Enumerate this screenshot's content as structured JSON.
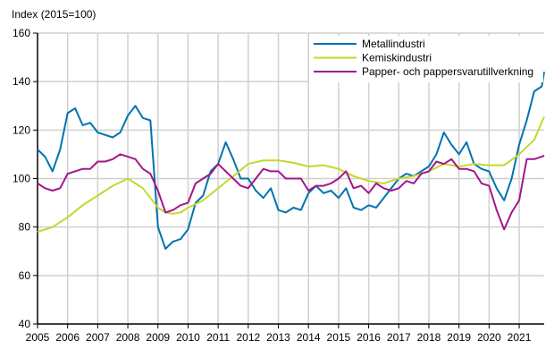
{
  "chart_data": {
    "type": "line",
    "ylabel": "Index (2015=100)",
    "ylim": [
      40,
      160
    ],
    "xlim": [
      2005,
      2021.83
    ],
    "yticks": [
      40,
      60,
      80,
      100,
      120,
      140,
      160
    ],
    "xticks": [
      "2005",
      "2006",
      "2007",
      "2008",
      "2009",
      "2010",
      "2011",
      "2012",
      "2013",
      "2014",
      "2015",
      "2016",
      "2017",
      "2018",
      "2019",
      "2020",
      "2021"
    ],
    "grid": true,
    "legend_placement": "top-right",
    "series": [
      {
        "name": "Metallindustri",
        "color": "#0073b0",
        "points": [
          [
            2005,
            112
          ],
          [
            2005.25,
            109
          ],
          [
            2005.5,
            103
          ],
          [
            2005.75,
            112
          ],
          [
            2006,
            127
          ],
          [
            2006.25,
            129
          ],
          [
            2006.5,
            122
          ],
          [
            2006.75,
            123
          ],
          [
            2007,
            119
          ],
          [
            2007.25,
            118
          ],
          [
            2007.5,
            117
          ],
          [
            2007.75,
            119
          ],
          [
            2008,
            126
          ],
          [
            2008.25,
            130
          ],
          [
            2008.5,
            125
          ],
          [
            2008.75,
            124
          ],
          [
            2009,
            80
          ],
          [
            2009.25,
            71
          ],
          [
            2009.5,
            74
          ],
          [
            2009.75,
            75
          ],
          [
            2010,
            79
          ],
          [
            2010.25,
            90
          ],
          [
            2010.5,
            93
          ],
          [
            2010.75,
            103
          ],
          [
            2011,
            106
          ],
          [
            2011.25,
            115
          ],
          [
            2011.5,
            108
          ],
          [
            2011.75,
            100
          ],
          [
            2012,
            100
          ],
          [
            2012.25,
            95
          ],
          [
            2012.5,
            92
          ],
          [
            2012.75,
            96
          ],
          [
            2013,
            87
          ],
          [
            2013.25,
            86
          ],
          [
            2013.5,
            88
          ],
          [
            2013.75,
            87
          ],
          [
            2014,
            94
          ],
          [
            2014.25,
            97
          ],
          [
            2014.5,
            94
          ],
          [
            2014.75,
            95
          ],
          [
            2015,
            92
          ],
          [
            2015.25,
            96
          ],
          [
            2015.5,
            88
          ],
          [
            2015.75,
            87
          ],
          [
            2016,
            89
          ],
          [
            2016.25,
            88
          ],
          [
            2016.5,
            92
          ],
          [
            2016.75,
            96
          ],
          [
            2017,
            100
          ],
          [
            2017.25,
            102
          ],
          [
            2017.5,
            101
          ],
          [
            2017.75,
            103
          ],
          [
            2018,
            105
          ],
          [
            2018.25,
            110
          ],
          [
            2018.5,
            119
          ],
          [
            2018.75,
            114
          ],
          [
            2019,
            110
          ],
          [
            2019.25,
            115
          ],
          [
            2019.5,
            106
          ],
          [
            2019.75,
            104
          ],
          [
            2020,
            103
          ],
          [
            2020.25,
            96
          ],
          [
            2020.5,
            91
          ],
          [
            2020.75,
            100
          ],
          [
            2021,
            114
          ],
          [
            2021.25,
            124
          ],
          [
            2021.5,
            136
          ],
          [
            2021.75,
            138
          ],
          [
            2021.83,
            144
          ]
        ]
      },
      {
        "name": "Kemiskindustri",
        "color": "#c4d82e",
        "points": [
          [
            2005,
            78
          ],
          [
            2005.5,
            80
          ],
          [
            2006,
            84
          ],
          [
            2006.5,
            89
          ],
          [
            2007,
            93
          ],
          [
            2007.5,
            97
          ],
          [
            2008,
            100
          ],
          [
            2008.25,
            98
          ],
          [
            2008.5,
            96
          ],
          [
            2008.75,
            92
          ],
          [
            2009,
            88
          ],
          [
            2009.25,
            86
          ],
          [
            2009.5,
            85.5
          ],
          [
            2009.75,
            86
          ],
          [
            2010,
            88
          ],
          [
            2010.5,
            91
          ],
          [
            2011,
            96
          ],
          [
            2011.5,
            101
          ],
          [
            2012,
            106
          ],
          [
            2012.5,
            107.5
          ],
          [
            2013,
            107.5
          ],
          [
            2013.5,
            106.5
          ],
          [
            2014,
            105
          ],
          [
            2014.5,
            105.5
          ],
          [
            2015,
            104
          ],
          [
            2015.5,
            101
          ],
          [
            2016,
            99
          ],
          [
            2016.5,
            98
          ],
          [
            2017,
            100
          ],
          [
            2017.5,
            101
          ],
          [
            2018,
            103
          ],
          [
            2018.5,
            106
          ],
          [
            2019,
            105
          ],
          [
            2019.5,
            106
          ],
          [
            2020,
            105.5
          ],
          [
            2020.5,
            105.5
          ],
          [
            2021,
            110
          ],
          [
            2021.5,
            116
          ],
          [
            2021.83,
            125.5
          ]
        ]
      },
      {
        "name": "Papper- och pappersvarutillverkning",
        "color": "#a3168b",
        "points": [
          [
            2005,
            98
          ],
          [
            2005.25,
            96
          ],
          [
            2005.5,
            95
          ],
          [
            2005.75,
            96
          ],
          [
            2006,
            102
          ],
          [
            2006.25,
            103
          ],
          [
            2006.5,
            104
          ],
          [
            2006.75,
            104
          ],
          [
            2007,
            107
          ],
          [
            2007.25,
            107
          ],
          [
            2007.5,
            108
          ],
          [
            2007.75,
            110
          ],
          [
            2008,
            109
          ],
          [
            2008.25,
            108
          ],
          [
            2008.5,
            104
          ],
          [
            2008.75,
            102
          ],
          [
            2009,
            95
          ],
          [
            2009.25,
            86
          ],
          [
            2009.5,
            87
          ],
          [
            2009.75,
            89
          ],
          [
            2010,
            90
          ],
          [
            2010.25,
            98
          ],
          [
            2010.5,
            100
          ],
          [
            2010.75,
            102
          ],
          [
            2011,
            106
          ],
          [
            2011.25,
            103
          ],
          [
            2011.5,
            100
          ],
          [
            2011.75,
            97
          ],
          [
            2012,
            96
          ],
          [
            2012.25,
            100
          ],
          [
            2012.5,
            104
          ],
          [
            2012.75,
            103
          ],
          [
            2013,
            103
          ],
          [
            2013.25,
            100
          ],
          [
            2013.5,
            100
          ],
          [
            2013.75,
            100
          ],
          [
            2014,
            95
          ],
          [
            2014.25,
            97
          ],
          [
            2014.5,
            97
          ],
          [
            2014.75,
            98
          ],
          [
            2015,
            100
          ],
          [
            2015.25,
            103
          ],
          [
            2015.5,
            96
          ],
          [
            2015.75,
            97
          ],
          [
            2016,
            94
          ],
          [
            2016.25,
            98
          ],
          [
            2016.5,
            96
          ],
          [
            2016.75,
            95
          ],
          [
            2017,
            96
          ],
          [
            2017.25,
            99
          ],
          [
            2017.5,
            98
          ],
          [
            2017.75,
            102
          ],
          [
            2018,
            103
          ],
          [
            2018.25,
            107
          ],
          [
            2018.5,
            106
          ],
          [
            2018.75,
            108
          ],
          [
            2019,
            104
          ],
          [
            2019.25,
            104
          ],
          [
            2019.5,
            103
          ],
          [
            2019.75,
            98
          ],
          [
            2020,
            97
          ],
          [
            2020.25,
            87
          ],
          [
            2020.5,
            79
          ],
          [
            2020.75,
            86
          ],
          [
            2021,
            91
          ],
          [
            2021.25,
            108
          ],
          [
            2021.5,
            108
          ],
          [
            2021.75,
            109
          ],
          [
            2021.83,
            109.5
          ]
        ]
      }
    ]
  }
}
